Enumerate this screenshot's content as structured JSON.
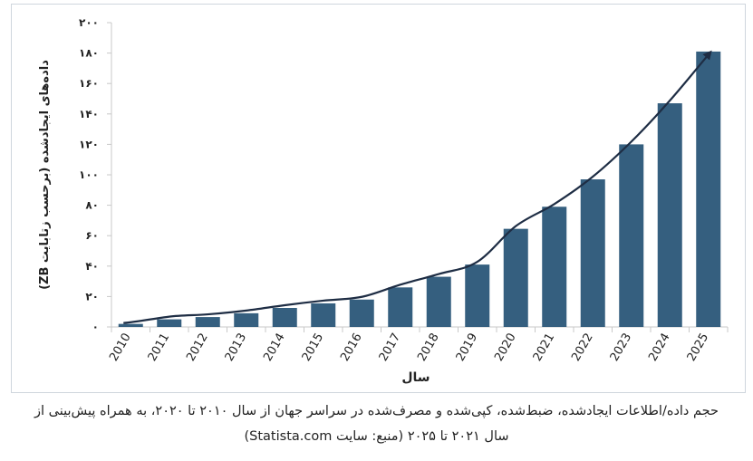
{
  "chart_data": {
    "type": "bar",
    "categories": [
      "2010",
      "2011",
      "2012",
      "2013",
      "2014",
      "2015",
      "2016",
      "2017",
      "2018",
      "2019",
      "2020",
      "2021",
      "2022",
      "2023",
      "2024",
      "2025"
    ],
    "values": [
      2,
      5,
      6.5,
      9,
      12.5,
      15.5,
      18,
      26,
      33,
      41,
      64.5,
      79,
      97,
      120,
      147,
      181
    ],
    "title": "",
    "xlabel": "سال",
    "ylabel": "داده‌های ایجادشده (برحسب زتابایت ZB)",
    "ylim": [
      0,
      200
    ],
    "yticks": [
      0,
      20,
      40,
      60,
      80,
      100,
      120,
      140,
      160,
      180,
      200
    ],
    "ytick_labels": [
      "۰",
      "۲۰",
      "۴۰",
      "۶۰",
      "۸۰",
      "۱۰۰",
      "۱۲۰",
      "۱۴۰",
      "۱۶۰",
      "۱۸۰",
      "۲۰۰"
    ],
    "grid": false,
    "legend": "none",
    "trend_arrow": true,
    "colors": {
      "bar": "#355f7f",
      "arrow": "#1e2d44",
      "axis": "#c8c8c8",
      "text": "#222222"
    }
  },
  "caption": {
    "line1": "حجم داده/اطلاعات ایجادشده، ضبط‌شده، کپی‌شده و مصرف‌شده در سراسر جهان از سال ۲۰۱۰ تا ۲۰۲۰، به همراه پیش‌بینی از",
    "line2": "سال ۲۰۲۱ تا ۲۰۲۵ (منبع: سایت Statista.com)"
  }
}
